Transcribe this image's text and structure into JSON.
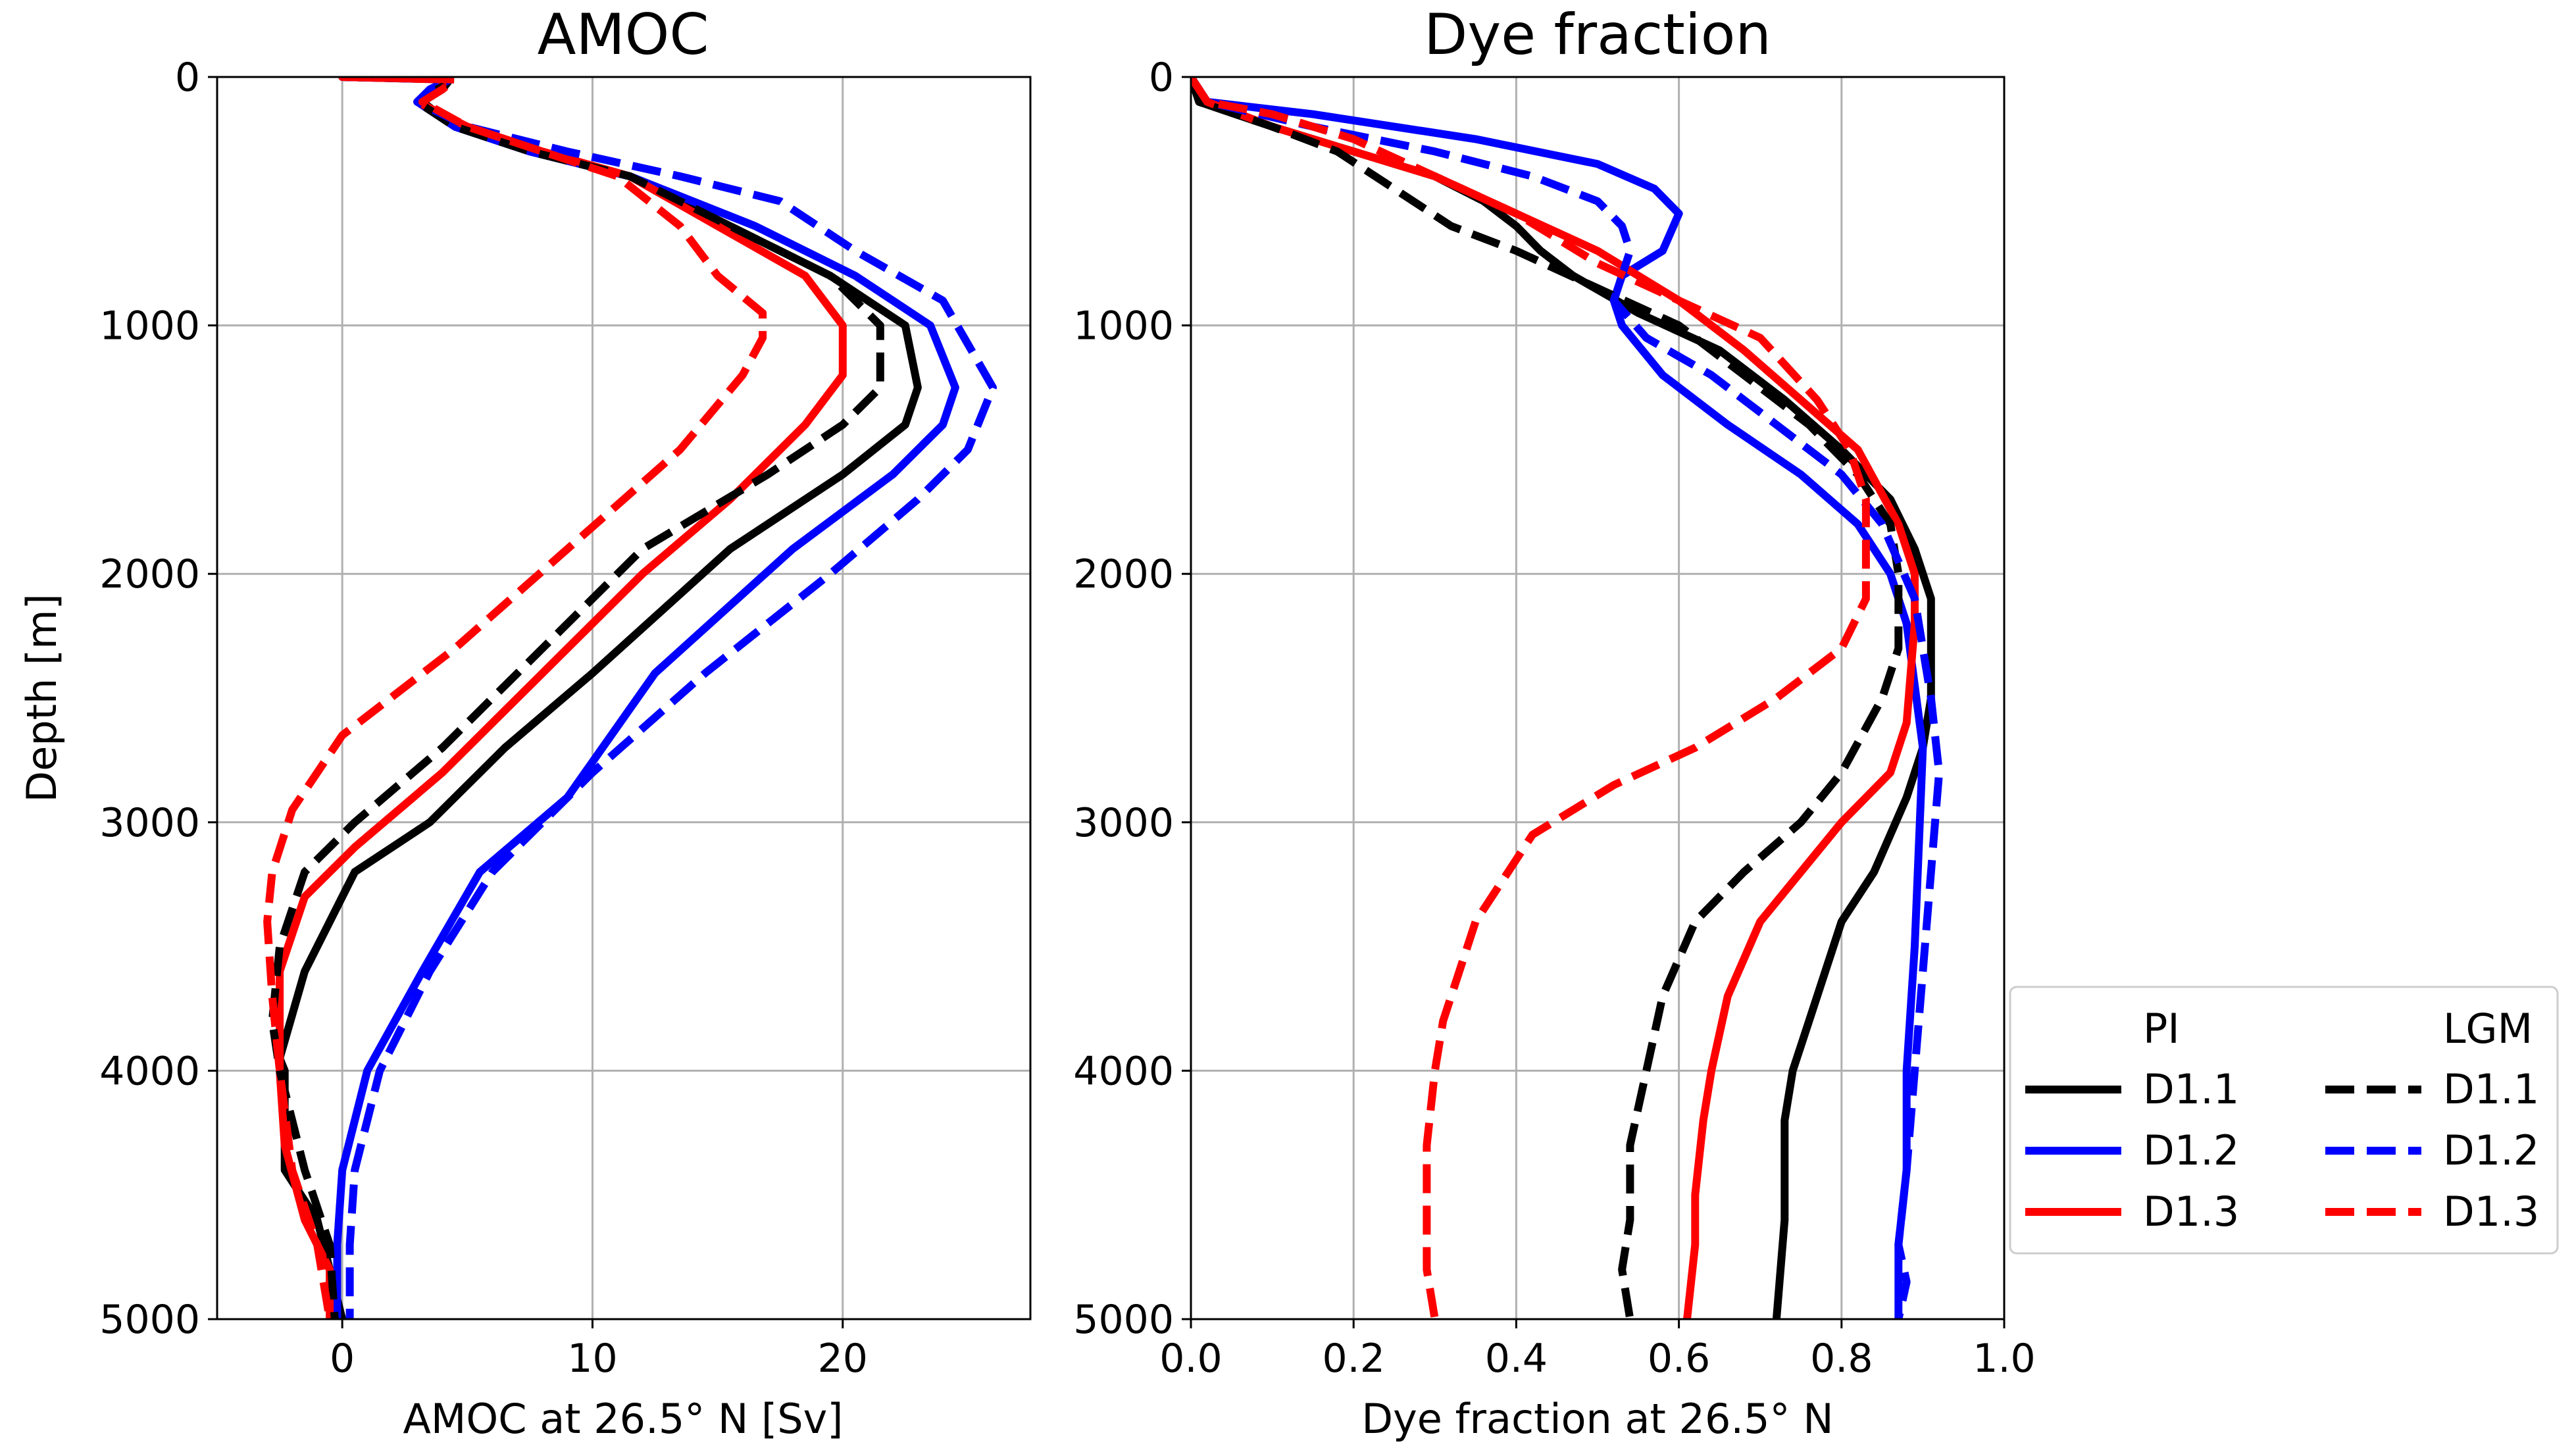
{
  "colors": {
    "D1.1": "#000000",
    "D1.2": "#0000ff",
    "D1.3": "#ff0000",
    "grid": "#b0b0b0"
  },
  "chart_data": [
    {
      "type": "line",
      "title": "AMOC",
      "xlabel": "AMOC at 26.5° N [Sv]",
      "ylabel": "Depth [m]",
      "xlim": [
        -5,
        27.5
      ],
      "ylim": [
        5000,
        0
      ],
      "xticks": [
        0,
        10,
        20
      ],
      "yticks": [
        0,
        1000,
        2000,
        3000,
        4000,
        5000
      ],
      "grid": true,
      "series": [
        {
          "name": "PI D1.1",
          "color": "#000000",
          "dashed": false,
          "x": [
            0,
            4.3,
            4.0,
            3.2,
            4.5,
            7.5,
            11.5,
            15.5,
            19.5,
            22.5,
            23.0,
            22.5,
            20.0,
            15.5,
            10.0,
            6.5,
            3.5,
            0.5,
            -1.5,
            -2.5,
            -2.3,
            -2.3,
            -1.0,
            0.0
          ],
          "y": [
            0,
            10,
            50,
            100,
            200,
            300,
            400,
            600,
            800,
            1000,
            1250,
            1400,
            1600,
            1900,
            2400,
            2700,
            3000,
            3200,
            3600,
            3950,
            4000,
            4400,
            4600,
            5000
          ]
        },
        {
          "name": "PI D1.2",
          "color": "#0000ff",
          "dashed": false,
          "x": [
            0,
            4.3,
            3.5,
            3.0,
            4.5,
            7.5,
            11.5,
            16.5,
            20.5,
            23.5,
            24.5,
            24.0,
            22.0,
            18.0,
            12.5,
            9.0,
            5.5,
            3.2,
            1.0,
            0,
            -0.2,
            -0.2
          ],
          "y": [
            0,
            10,
            50,
            100,
            200,
            300,
            400,
            600,
            800,
            1000,
            1250,
            1400,
            1600,
            1900,
            2400,
            2900,
            3200,
            3600,
            4000,
            4400,
            4700,
            5000
          ]
        },
        {
          "name": "PI D1.3",
          "color": "#ff0000",
          "dashed": false,
          "x": [
            0,
            4.0,
            4.0,
            3.0,
            5.0,
            8.0,
            11.5,
            15.0,
            18.5,
            20.0,
            20.0,
            18.5,
            15.5,
            12.0,
            8.0,
            4.0,
            0.5,
            -1.5,
            -2.5,
            -2.5,
            -2.3,
            -1.5,
            -0.5,
            -0.5
          ],
          "y": [
            0,
            10,
            50,
            100,
            200,
            300,
            400,
            600,
            800,
            1000,
            1200,
            1400,
            1700,
            2000,
            2400,
            2800,
            3100,
            3300,
            3600,
            4000,
            4300,
            4600,
            4800,
            5000
          ]
        },
        {
          "name": "LGM D1.1",
          "color": "#000000",
          "dashed": true,
          "x": [
            0,
            4.5,
            3.8,
            3.0,
            4.5,
            7.5,
            11.5,
            15.5,
            19.5,
            21.5,
            21.5,
            20.0,
            17.0,
            12.0,
            8.0,
            4.0,
            0.5,
            -1.5,
            -2.5,
            -2.8,
            -2.5,
            -1.5,
            -0.5,
            -0.3
          ],
          "y": [
            0,
            10,
            50,
            100,
            200,
            300,
            400,
            600,
            800,
            1000,
            1250,
            1400,
            1600,
            1900,
            2300,
            2700,
            3000,
            3200,
            3500,
            3800,
            4000,
            4400,
            4700,
            5000
          ]
        },
        {
          "name": "LGM D1.2",
          "color": "#0000ff",
          "dashed": true,
          "x": [
            0,
            4.3,
            3.5,
            3.0,
            5.0,
            9.0,
            13.5,
            17.5,
            20.5,
            24.0,
            26.0,
            25.0,
            23.0,
            19.5,
            14.5,
            10.0,
            6.0,
            3.5,
            1.5,
            0.5,
            0.3,
            0.3
          ],
          "y": [
            0,
            10,
            50,
            100,
            200,
            300,
            400,
            500,
            700,
            900,
            1250,
            1500,
            1700,
            2000,
            2400,
            2800,
            3200,
            3600,
            4000,
            4400,
            4700,
            5000
          ]
        },
        {
          "name": "LGM D1.3",
          "color": "#ff0000",
          "dashed": true,
          "x": [
            0,
            4.5,
            4.0,
            3.2,
            5.0,
            8.0,
            11.0,
            13.5,
            15.0,
            16.8,
            16.8,
            16.0,
            13.5,
            9.0,
            4.5,
            0,
            -2.0,
            -2.8,
            -3.0,
            -2.8,
            -2.5,
            -2.0,
            -1.0,
            -0.5
          ],
          "y": [
            0,
            10,
            50,
            100,
            200,
            300,
            400,
            600,
            800,
            950,
            1050,
            1200,
            1500,
            1900,
            2300,
            2650,
            2950,
            3200,
            3400,
            3700,
            4000,
            4400,
            4700,
            5000
          ]
        }
      ]
    },
    {
      "type": "line",
      "title": "Dye fraction",
      "xlabel": "Dye fraction at 26.5° N",
      "ylabel": "",
      "xlim": [
        0.0,
        1.0
      ],
      "ylim": [
        5000,
        0
      ],
      "xticks": [
        0.0,
        0.2,
        0.4,
        0.6,
        0.8,
        1.0
      ],
      "yticks": [
        0,
        1000,
        2000,
        3000,
        4000,
        5000
      ],
      "grid": true,
      "series": [
        {
          "name": "PI D1.1",
          "color": "#000000",
          "dashed": false,
          "x": [
            0,
            0.01,
            0.1,
            0.2,
            0.3,
            0.36,
            0.4,
            0.43,
            0.47,
            0.55,
            0.65,
            0.73,
            0.8,
            0.86,
            0.89,
            0.91,
            0.91,
            0.9,
            0.88,
            0.84,
            0.8,
            0.78,
            0.76,
            0.74,
            0.73,
            0.73,
            0.72
          ],
          "y": [
            0,
            100,
            200,
            300,
            400,
            500,
            600,
            700,
            800,
            950,
            1100,
            1300,
            1500,
            1700,
            1900,
            2100,
            2500,
            2700,
            2900,
            3200,
            3400,
            3600,
            3800,
            4000,
            4200,
            4600,
            5000
          ]
        },
        {
          "name": "PI D1.2",
          "color": "#0000ff",
          "dashed": false,
          "x": [
            0,
            0.02,
            0.15,
            0.35,
            0.5,
            0.57,
            0.6,
            0.58,
            0.53,
            0.52,
            0.53,
            0.58,
            0.66,
            0.75,
            0.82,
            0.86,
            0.88,
            0.9,
            0.89,
            0.88,
            0.88,
            0.87,
            0.87
          ],
          "y": [
            0,
            100,
            150,
            250,
            350,
            450,
            550,
            700,
            800,
            900,
            1000,
            1200,
            1400,
            1600,
            1800,
            2000,
            2200,
            2700,
            3500,
            4000,
            4400,
            4700,
            5000
          ]
        },
        {
          "name": "PI D1.3",
          "color": "#ff0000",
          "dashed": false,
          "x": [
            0,
            0.02,
            0.1,
            0.2,
            0.3,
            0.4,
            0.5,
            0.6,
            0.68,
            0.75,
            0.82,
            0.87,
            0.89,
            0.89,
            0.88,
            0.86,
            0.8,
            0.75,
            0.7,
            0.66,
            0.64,
            0.63,
            0.62,
            0.62,
            0.61
          ],
          "y": [
            0,
            100,
            200,
            300,
            400,
            550,
            700,
            900,
            1100,
            1300,
            1500,
            1800,
            2000,
            2200,
            2600,
            2800,
            3000,
            3200,
            3400,
            3700,
            4000,
            4200,
            4500,
            4700,
            5000
          ]
        },
        {
          "name": "LGM D1.1",
          "color": "#000000",
          "dashed": true,
          "x": [
            0,
            0.01,
            0.1,
            0.18,
            0.25,
            0.32,
            0.4,
            0.5,
            0.6,
            0.68,
            0.76,
            0.82,
            0.86,
            0.87,
            0.87,
            0.85,
            0.8,
            0.75,
            0.68,
            0.62,
            0.58,
            0.56,
            0.54,
            0.54,
            0.53,
            0.54
          ],
          "y": [
            0,
            100,
            200,
            300,
            450,
            600,
            700,
            850,
            1000,
            1200,
            1400,
            1600,
            1800,
            2000,
            2300,
            2500,
            2800,
            3000,
            3200,
            3400,
            3700,
            4000,
            4300,
            4600,
            4800,
            5000
          ]
        },
        {
          "name": "LGM D1.2",
          "color": "#0000ff",
          "dashed": true,
          "x": [
            0,
            0.02,
            0.15,
            0.3,
            0.42,
            0.5,
            0.53,
            0.54,
            0.52,
            0.56,
            0.64,
            0.72,
            0.8,
            0.85,
            0.89,
            0.91,
            0.92,
            0.91,
            0.9,
            0.89,
            0.88,
            0.87,
            0.88,
            0.87
          ],
          "y": [
            0,
            100,
            200,
            300,
            400,
            500,
            600,
            700,
            900,
            1050,
            1200,
            1400,
            1600,
            1800,
            2100,
            2500,
            2800,
            3200,
            3600,
            4000,
            4400,
            4700,
            4850,
            5000
          ]
        },
        {
          "name": "LGM D1.3",
          "color": "#ff0000",
          "dashed": true,
          "x": [
            0,
            0.02,
            0.1,
            0.2,
            0.3,
            0.4,
            0.5,
            0.6,
            0.7,
            0.77,
            0.81,
            0.83,
            0.83,
            0.8,
            0.72,
            0.62,
            0.52,
            0.42,
            0.35,
            0.31,
            0.3,
            0.29,
            0.29,
            0.29,
            0.3
          ],
          "y": [
            0,
            100,
            150,
            250,
            400,
            550,
            750,
            900,
            1050,
            1300,
            1500,
            1700,
            2100,
            2300,
            2500,
            2700,
            2850,
            3050,
            3400,
            3800,
            4000,
            4300,
            4600,
            4800,
            5000
          ]
        }
      ]
    }
  ],
  "legend": {
    "placement": "outside right",
    "headers": [
      "PI",
      "LGM"
    ],
    "pi_labels": [
      "D1.1",
      "D1.2",
      "D1.3"
    ],
    "lgm_labels": [
      "D1.1",
      "D1.2",
      "D1.3"
    ]
  }
}
